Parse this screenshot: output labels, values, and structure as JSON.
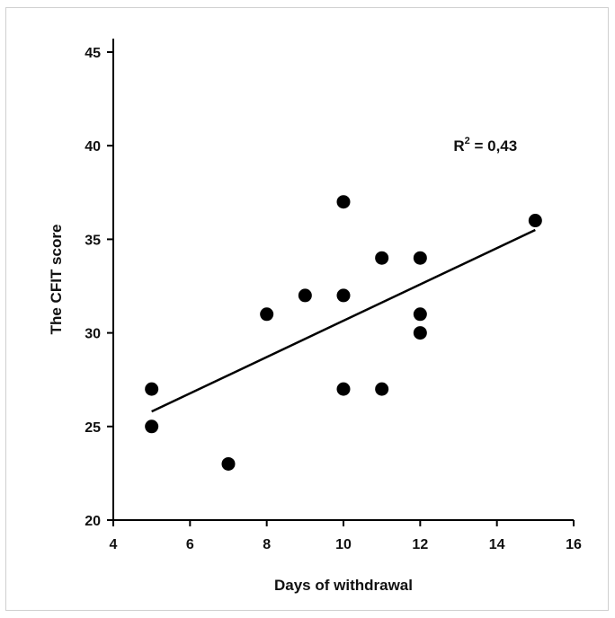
{
  "chart_data": {
    "type": "scatter",
    "title": "",
    "xlabel": "Days of withdrawal",
    "ylabel": "The CFIT score",
    "xlim": [
      4,
      16
    ],
    "ylim": [
      20,
      45
    ],
    "xticks": [
      4,
      6,
      8,
      10,
      12,
      14,
      16
    ],
    "yticks": [
      20,
      25,
      30,
      35,
      40,
      45
    ],
    "grid": false,
    "legend": "none",
    "points": [
      {
        "x": 5,
        "y": 27
      },
      {
        "x": 5,
        "y": 25
      },
      {
        "x": 7,
        "y": 23
      },
      {
        "x": 8,
        "y": 31
      },
      {
        "x": 9,
        "y": 32
      },
      {
        "x": 10,
        "y": 37
      },
      {
        "x": 10,
        "y": 32
      },
      {
        "x": 10,
        "y": 27
      },
      {
        "x": 11,
        "y": 34
      },
      {
        "x": 11,
        "y": 27
      },
      {
        "x": 12,
        "y": 34
      },
      {
        "x": 12,
        "y": 31
      },
      {
        "x": 12,
        "y": 30
      },
      {
        "x": 15,
        "y": 36
      }
    ],
    "trendline": [
      {
        "x": 5,
        "y": 25.8
      },
      {
        "x": 15,
        "y": 35.5
      }
    ],
    "annotation": {
      "base": "R",
      "sup": "2",
      "rest": " = 0,43",
      "x": 13.5,
      "y": 40
    },
    "colors": {
      "marker": "#000000",
      "line": "#000000"
    }
  }
}
